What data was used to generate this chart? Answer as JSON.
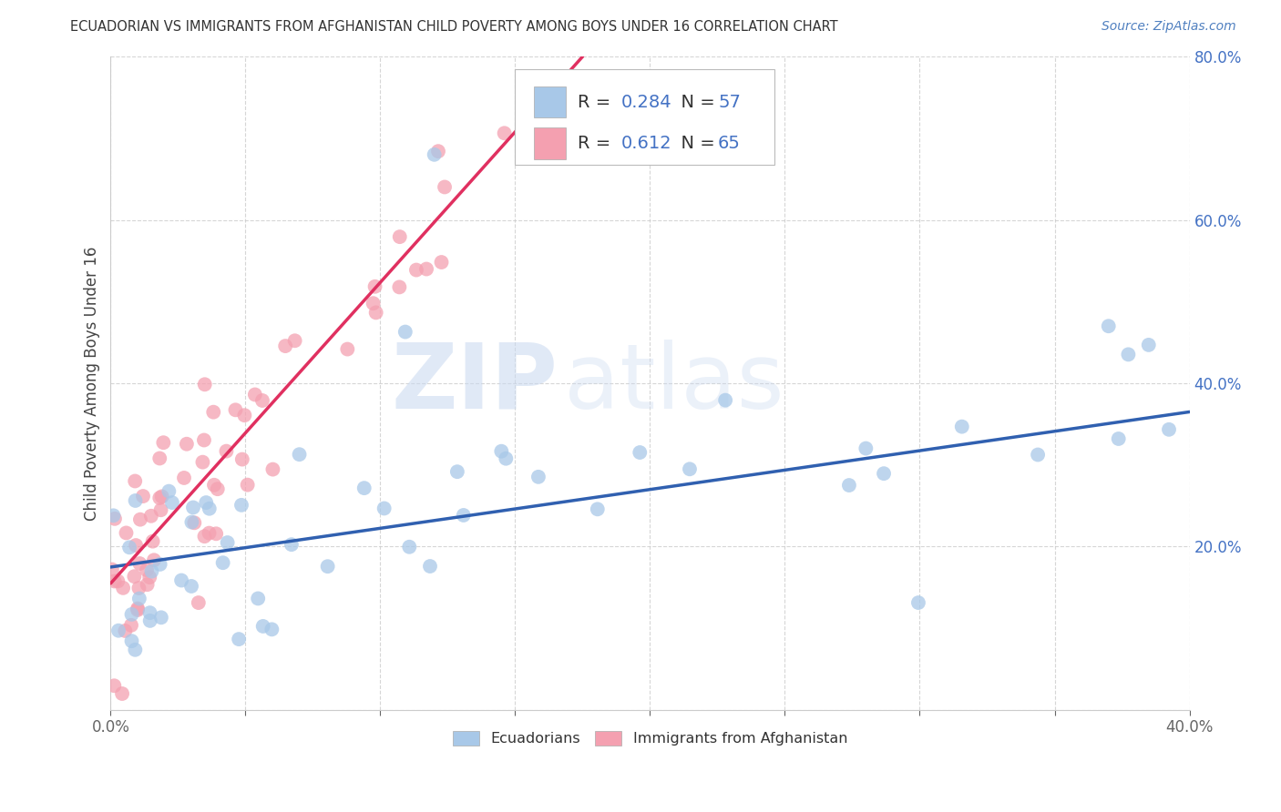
{
  "title": "ECUADORIAN VS IMMIGRANTS FROM AFGHANISTAN CHILD POVERTY AMONG BOYS UNDER 16 CORRELATION CHART",
  "source": "Source: ZipAtlas.com",
  "ylabel_label": "Child Poverty Among Boys Under 16",
  "xlim": [
    0.0,
    0.4
  ],
  "ylim": [
    0.0,
    0.8
  ],
  "blue_R": 0.284,
  "blue_N": 57,
  "pink_R": 0.612,
  "pink_N": 65,
  "blue_color": "#a8c8e8",
  "pink_color": "#f4a0b0",
  "blue_line_color": "#3060b0",
  "pink_line_color": "#e03060",
  "legend_label_blue": "Ecuadorians",
  "legend_label_pink": "Immigrants from Afghanistan",
  "watermark_zip": "ZIP",
  "watermark_atlas": "atlas",
  "background_color": "#ffffff",
  "grid_color": "#cccccc",
  "title_color": "#333333",
  "ytick_color": "#4472c4",
  "xtick_color": "#666666",
  "blue_line": {
    "x0": 0.0,
    "x1": 0.4,
    "y0": 0.175,
    "y1": 0.365
  },
  "pink_line": {
    "x0": 0.0,
    "x1": 0.175,
    "y0": 0.155,
    "y1": 0.8
  }
}
